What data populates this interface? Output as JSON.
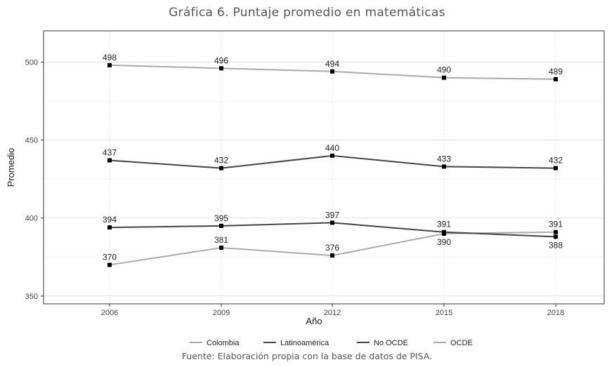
{
  "chart_data": {
    "type": "line",
    "title": "Gráfica 6. Puntaje promedio en matemáticas",
    "xlabel": "Año",
    "ylabel": "Promedio",
    "x": [
      2006,
      2009,
      2012,
      2015,
      2018
    ],
    "yticks": [
      350,
      400,
      450,
      500
    ],
    "ylim": [
      345,
      520
    ],
    "grid": true,
    "legend_position": "bottom",
    "series": [
      {
        "name": "Colombia",
        "values": [
          370,
          381,
          376,
          390,
          391
        ],
        "color": "#aaaaaa"
      },
      {
        "name": "Latinoamérica",
        "values": [
          394,
          395,
          397,
          391,
          388
        ],
        "color": "#444444"
      },
      {
        "name": "No OCDE",
        "values": [
          437,
          432,
          440,
          433,
          432
        ],
        "color": "#444444"
      },
      {
        "name": "OCDE",
        "values": [
          498,
          496,
          494,
          490,
          489
        ],
        "color": "#aaaaaa"
      }
    ],
    "point_labels": [
      {
        "series": 0,
        "labels": [
          "370",
          "381",
          "376",
          "390",
          "391"
        ]
      },
      {
        "series": 1,
        "labels": [
          "394",
          "395",
          "397",
          "391",
          "388"
        ]
      },
      {
        "series": 2,
        "labels": [
          "437",
          "432",
          "440",
          "433",
          "432"
        ]
      },
      {
        "series": 3,
        "labels": [
          "498",
          "496",
          "494",
          "490",
          "489"
        ]
      }
    ],
    "source_note": "Fuente: Elaboración propia con la base de datos de PISA."
  }
}
